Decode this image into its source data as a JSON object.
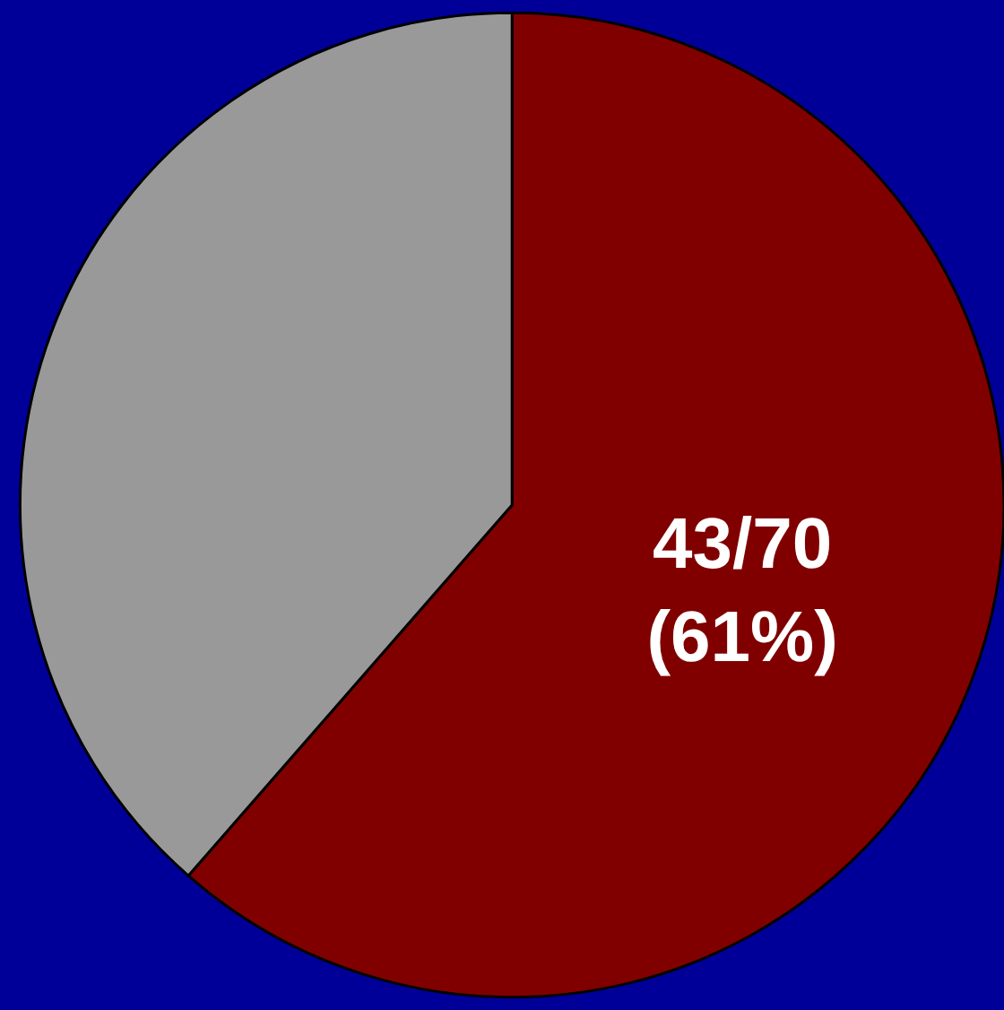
{
  "chart_data": {
    "type": "pie",
    "categories": [
      null,
      null
    ],
    "values": [
      43,
      27
    ],
    "colors": [
      "#800000",
      "#999999"
    ],
    "value_labels": [
      "43/70\n(61%)",
      null
    ],
    "legend": false
  }
}
